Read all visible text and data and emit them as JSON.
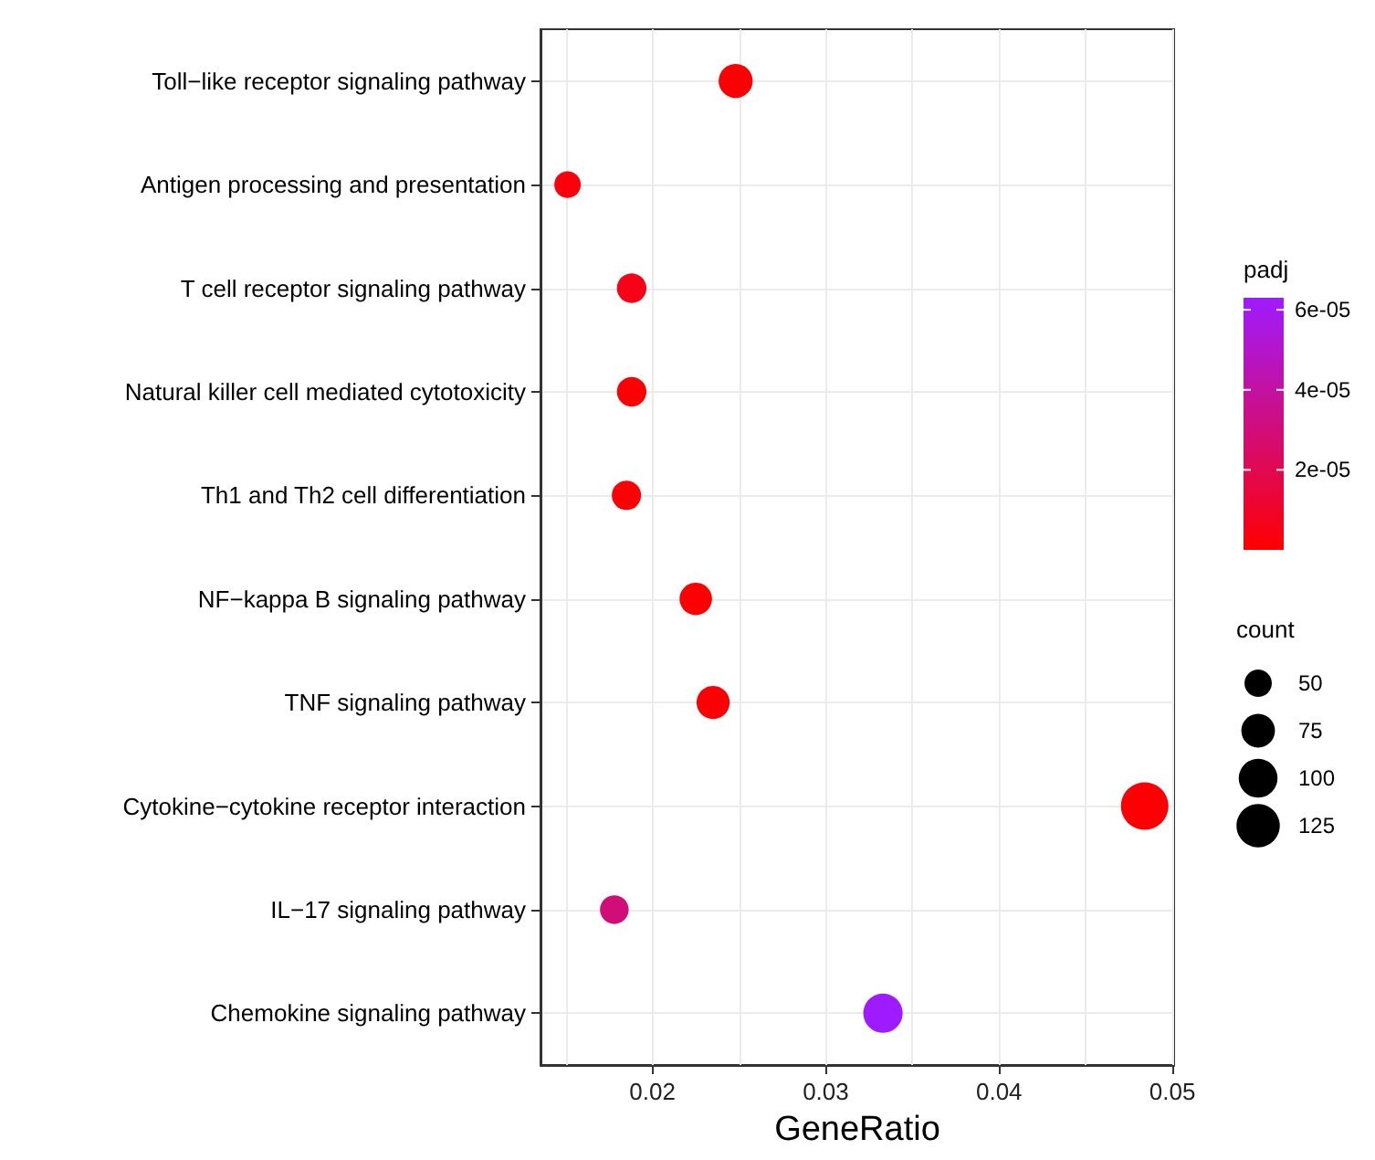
{
  "chart_data": {
    "type": "bubble",
    "xlabel": "GeneRatio",
    "clabel": "padj",
    "legend_title": "count",
    "categories": [
      "Toll−like receptor signaling pathway",
      "Antigen processing and presentation",
      "T cell receptor signaling pathway",
      "Natural killer cell mediated cytotoxicity",
      "Th1 and Th2 cell differentiation",
      "NF−kappa B signaling pathway",
      "TNF signaling pathway",
      "Cytokine−cytokine receptor interaction",
      "IL−17 signaling pathway",
      "Chemokine signaling pathway"
    ],
    "values": [
      0.0248,
      0.0151,
      0.0188,
      0.0188,
      0.0185,
      0.0225,
      0.0235,
      0.0484,
      0.0178,
      0.0333
    ],
    "sizes": [
      77,
      47,
      58,
      58,
      57,
      70,
      73,
      150,
      55,
      103
    ],
    "size_legend": [
      50,
      75,
      100,
      125
    ],
    "cvalues": [
      1e-06,
      3e-06,
      6e-06,
      1e-06,
      1e-06,
      1e-06,
      1e-06,
      1e-06,
      3e-05,
      6.3e-05
    ],
    "clim": [
      0,
      6.3e-05
    ],
    "cticks": [
      {
        "value": 2e-05,
        "label": "2e-05"
      },
      {
        "value": 4e-05,
        "label": "4e-05"
      },
      {
        "value": 6e-05,
        "label": "6e-05"
      }
    ],
    "xlim": [
      0.01354,
      0.0501
    ],
    "xticks": [
      0.02,
      0.03,
      0.04,
      0.05
    ],
    "grid": true,
    "tick_labels": "xy",
    "orientation": "horizontal"
  }
}
